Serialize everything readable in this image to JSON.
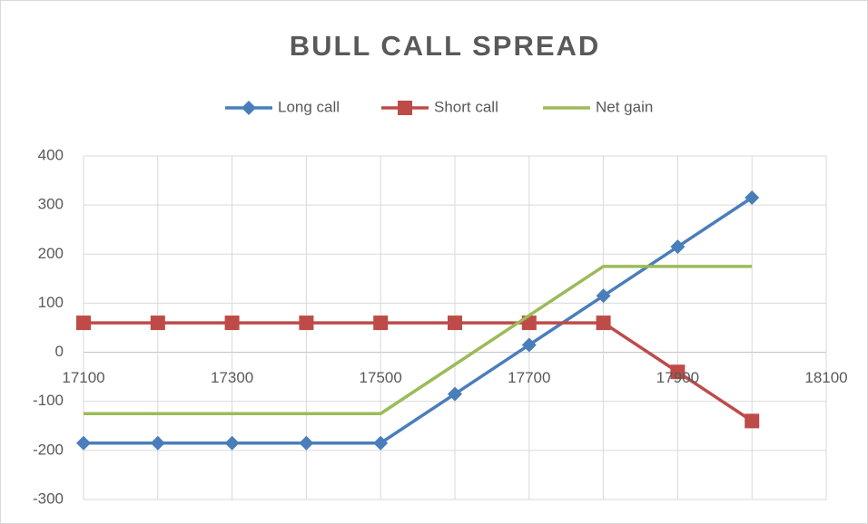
{
  "chart_data": {
    "type": "line",
    "title": "BULL CALL SPREAD",
    "x": [
      17100,
      17200,
      17300,
      17400,
      17500,
      17600,
      17700,
      17800,
      17900,
      18000
    ],
    "series": [
      {
        "name": "Long call",
        "color": "#4a7ebb",
        "marker": "diamond",
        "values": [
          -185,
          -185,
          -185,
          -185,
          -185,
          -85,
          15,
          115,
          215,
          315
        ]
      },
      {
        "name": "Short call",
        "color": "#be4b48",
        "marker": "square",
        "values": [
          60,
          60,
          60,
          60,
          60,
          60,
          60,
          60,
          -40,
          -140
        ]
      },
      {
        "name": "Net gain",
        "color": "#9bbb59",
        "marker": "none",
        "values": [
          -125,
          -125,
          -125,
          -125,
          -125,
          -25,
          75,
          175,
          175,
          175
        ]
      }
    ],
    "xlim": [
      17100,
      18100
    ],
    "xticks": [
      17100,
      17300,
      17500,
      17700,
      17900,
      18100
    ],
    "xminor_grid": [
      17200,
      17400,
      17600,
      17800,
      18000
    ],
    "ylim": [
      -300,
      400
    ],
    "yticks": [
      -300,
      -200,
      -100,
      0,
      100,
      200,
      300,
      400
    ],
    "grid": true,
    "legend": "top"
  }
}
